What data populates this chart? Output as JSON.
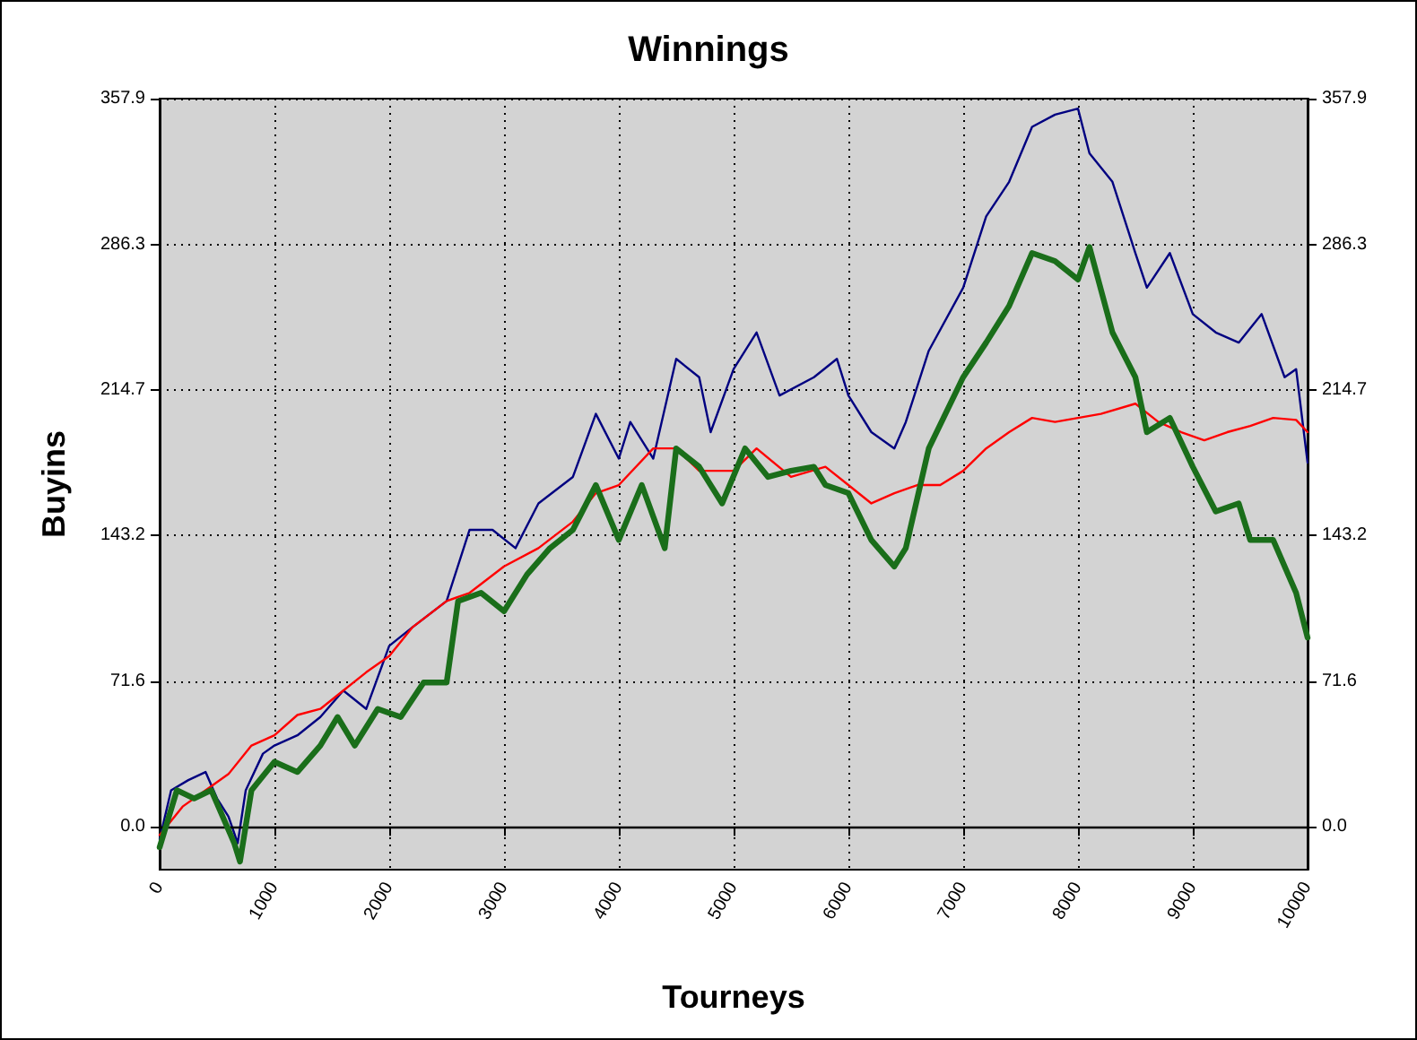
{
  "chart_data": {
    "type": "line",
    "title": "Winnings",
    "xlabel": "Tourneys",
    "ylabel": "Buyins",
    "xlim": [
      0,
      10000
    ],
    "xticks": [
      0,
      1000,
      2000,
      3000,
      4000,
      5000,
      6000,
      7000,
      8000,
      9000,
      10000
    ],
    "ylim": [
      -21,
      357.9
    ],
    "yticks": [
      {
        "value": 0,
        "label": "0.0"
      },
      71.6,
      143.2,
      214.7,
      286.3,
      357.9
    ],
    "y2lim": [
      -21,
      357.9
    ],
    "y2ticks": [
      {
        "value": 0,
        "label": "0.0"
      },
      71.6,
      143.2,
      214.7,
      286.3,
      357.9
    ],
    "grid": true,
    "marker": "none",
    "line_style": "solid",
    "ref_lines": [
      {
        "axis": "y",
        "value": 0,
        "color": "#000000"
      }
    ],
    "series": [
      {
        "color": "#000080",
        "x": [
          0,
          100,
          250,
          400,
          500,
          600,
          680,
          750,
          900,
          1000,
          1200,
          1400,
          1600,
          1800,
          2000,
          2200,
          2500,
          2700,
          2900,
          3100,
          3300,
          3600,
          3800,
          4000,
          4100,
          4300,
          4500,
          4700,
          4800,
          5000,
          5200,
          5400,
          5700,
          5900,
          6000,
          6200,
          6400,
          6500,
          6700,
          7000,
          7200,
          7400,
          7600,
          7800,
          8000,
          8100,
          8300,
          8500,
          8600,
          8800,
          9000,
          9200,
          9400,
          9600,
          9800,
          9900,
          10000
        ],
        "values": [
          -6,
          18,
          23,
          27,
          14,
          5,
          -8,
          18,
          36,
          40,
          45,
          54,
          67,
          58,
          89,
          98,
          111,
          146,
          146,
          137,
          159,
          172,
          203,
          181,
          199,
          181,
          230,
          221,
          194,
          225,
          243,
          212,
          221,
          230,
          212,
          194,
          186,
          199,
          234,
          265,
          300,
          317,
          344,
          350,
          353,
          331,
          317,
          282,
          265,
          282,
          252,
          243,
          238,
          252,
          221,
          225,
          179
        ]
      },
      {
        "color": "#ff0000",
        "x": [
          0,
          200,
          400,
          600,
          800,
          1000,
          1200,
          1400,
          1600,
          1800,
          2000,
          2200,
          2500,
          2700,
          3000,
          3300,
          3600,
          3800,
          4000,
          4300,
          4500,
          4700,
          5000,
          5200,
          5500,
          5800,
          6000,
          6200,
          6400,
          6600,
          6800,
          7000,
          7200,
          7400,
          7600,
          7800,
          8000,
          8200,
          8500,
          8700,
          8900,
          9100,
          9300,
          9500,
          9700,
          9900,
          10000
        ],
        "values": [
          -4,
          10,
          18,
          26,
          40,
          45,
          55,
          58,
          67,
          76,
          84,
          98,
          111,
          115,
          128,
          137,
          150,
          164,
          168,
          186,
          186,
          175,
          175,
          186,
          172,
          177,
          168,
          159,
          164,
          168,
          168,
          175,
          186,
          194,
          201,
          199,
          201,
          203,
          208,
          199,
          194,
          190,
          194,
          197,
          201,
          200,
          194
        ]
      },
      {
        "color": "#1a6e1a",
        "x": [
          0,
          150,
          300,
          450,
          550,
          650,
          700,
          800,
          1000,
          1200,
          1400,
          1550,
          1700,
          1900,
          2100,
          2300,
          2500,
          2600,
          2800,
          3000,
          3200,
          3400,
          3600,
          3800,
          4000,
          4200,
          4400,
          4500,
          4700,
          4900,
          5100,
          5300,
          5500,
          5700,
          5800,
          6000,
          6200,
          6400,
          6500,
          6700,
          7000,
          7200,
          7400,
          7600,
          7800,
          8000,
          8100,
          8300,
          8500,
          8600,
          8800,
          9000,
          9200,
          9400,
          9500,
          9700,
          9900,
          10000
        ],
        "values": [
          -10,
          18,
          14,
          18,
          5,
          -8,
          -17,
          18,
          32,
          27,
          40,
          54,
          40,
          58,
          54,
          71,
          71,
          111,
          115,
          106,
          124,
          137,
          146,
          168,
          141,
          168,
          137,
          186,
          177,
          159,
          186,
          172,
          175,
          177,
          168,
          164,
          141,
          128,
          137,
          186,
          221,
          238,
          256,
          282,
          278,
          269,
          285,
          243,
          221,
          194,
          201,
          177,
          155,
          159,
          141,
          141,
          115,
          93
        ]
      }
    ]
  }
}
